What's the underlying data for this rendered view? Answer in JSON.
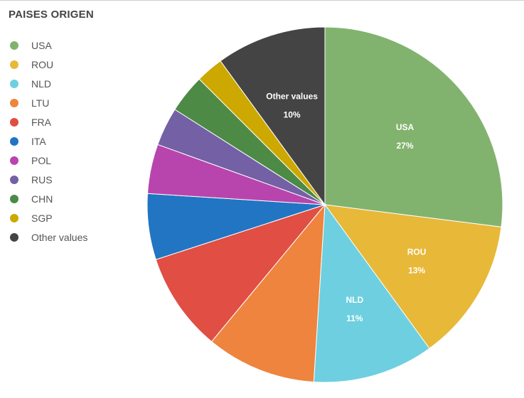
{
  "chart_data": {
    "type": "pie",
    "title": "PAISES ORIGEN",
    "legend_position": "left",
    "slices": [
      {
        "label": "USA",
        "value": 27,
        "color": "#82b36e",
        "data_label": "27%"
      },
      {
        "label": "ROU",
        "value": 13,
        "color": "#e8b838",
        "data_label": "13%"
      },
      {
        "label": "NLD",
        "value": 11,
        "color": "#6ecfe0",
        "data_label": "11%"
      },
      {
        "label": "LTU",
        "value": 10,
        "color": "#ee843d"
      },
      {
        "label": "FRA",
        "value": 9,
        "color": "#e04e44"
      },
      {
        "label": "ITA",
        "value": 6,
        "color": "#2275c2"
      },
      {
        "label": "POL",
        "value": 4.5,
        "color": "#b845ad"
      },
      {
        "label": "RUS",
        "value": 3.5,
        "color": "#7460a5"
      },
      {
        "label": "CHN",
        "value": 3.5,
        "color": "#4c8a46"
      },
      {
        "label": "SGP",
        "value": 2.5,
        "color": "#cca800"
      },
      {
        "label": "Other values",
        "value": 10,
        "color": "#444444",
        "data_label": "10%"
      }
    ]
  }
}
